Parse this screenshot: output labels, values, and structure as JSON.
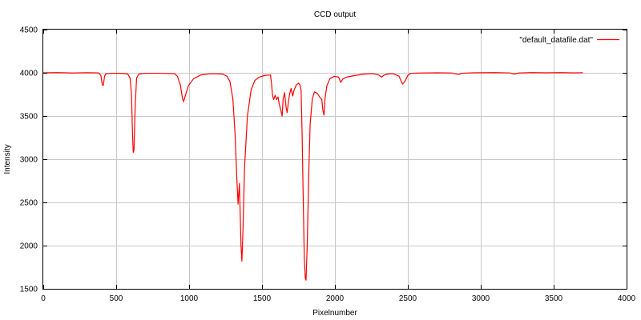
{
  "chart_data": {
    "type": "line",
    "title": "CCD output",
    "xlabel": "Pixelnumber",
    "ylabel": "Intensity",
    "xlim": [
      0,
      4000
    ],
    "ylim": [
      1500,
      4500
    ],
    "grid": true,
    "legend_position": "top-right",
    "x_ticks": [
      {
        "value": 0,
        "label": "0"
      },
      {
        "value": 500,
        "label": "500"
      },
      {
        "value": 1000,
        "label": "1000"
      },
      {
        "value": 1500,
        "label": "1500"
      },
      {
        "value": 2000,
        "label": "2000"
      },
      {
        "value": 2500,
        "label": "2500"
      },
      {
        "value": 3000,
        "label": "3000"
      },
      {
        "value": 3500,
        "label": "3500"
      },
      {
        "value": 4000,
        "label": "4000"
      }
    ],
    "y_ticks": [
      {
        "value": 1500,
        "label": "1500"
      },
      {
        "value": 2000,
        "label": "2000"
      },
      {
        "value": 2500,
        "label": "2500"
      },
      {
        "value": 3000,
        "label": "3000"
      },
      {
        "value": 3500,
        "label": "3500"
      },
      {
        "value": 4000,
        "label": "4000"
      },
      {
        "value": 4500,
        "label": "4500"
      }
    ],
    "series": [
      {
        "name": "\"default_datafile.dat\"",
        "color": "#ff0000",
        "points": [
          [
            0,
            4000
          ],
          [
            100,
            4002
          ],
          [
            200,
            3998
          ],
          [
            300,
            4001
          ],
          [
            380,
            3999
          ],
          [
            395,
            3970
          ],
          [
            405,
            3860
          ],
          [
            412,
            3855
          ],
          [
            420,
            3960
          ],
          [
            430,
            3990
          ],
          [
            480,
            3995
          ],
          [
            540,
            3994
          ],
          [
            580,
            3985
          ],
          [
            595,
            3940
          ],
          [
            605,
            3750
          ],
          [
            612,
            3300
          ],
          [
            617,
            3080
          ],
          [
            622,
            3100
          ],
          [
            630,
            3600
          ],
          [
            640,
            3940
          ],
          [
            655,
            3985
          ],
          [
            700,
            3995
          ],
          [
            800,
            3995
          ],
          [
            900,
            3990
          ],
          [
            920,
            3960
          ],
          [
            940,
            3860
          ],
          [
            955,
            3700
          ],
          [
            962,
            3665
          ],
          [
            975,
            3740
          ],
          [
            995,
            3850
          ],
          [
            1030,
            3930
          ],
          [
            1080,
            3975
          ],
          [
            1150,
            3990
          ],
          [
            1230,
            3985
          ],
          [
            1260,
            3960
          ],
          [
            1280,
            3900
          ],
          [
            1300,
            3700
          ],
          [
            1315,
            3300
          ],
          [
            1328,
            2750
          ],
          [
            1336,
            2480
          ],
          [
            1340,
            2600
          ],
          [
            1345,
            2720
          ],
          [
            1350,
            2400
          ],
          [
            1356,
            2000
          ],
          [
            1362,
            1820
          ],
          [
            1370,
            2200
          ],
          [
            1380,
            2900
          ],
          [
            1400,
            3500
          ],
          [
            1425,
            3800
          ],
          [
            1450,
            3910
          ],
          [
            1480,
            3950
          ],
          [
            1520,
            3970
          ],
          [
            1558,
            3975
          ],
          [
            1565,
            3880
          ],
          [
            1572,
            3740
          ],
          [
            1580,
            3690
          ],
          [
            1590,
            3740
          ],
          [
            1600,
            3690
          ],
          [
            1610,
            3720
          ],
          [
            1618,
            3640
          ],
          [
            1630,
            3560
          ],
          [
            1638,
            3500
          ],
          [
            1645,
            3700
          ],
          [
            1655,
            3770
          ],
          [
            1665,
            3600
          ],
          [
            1672,
            3540
          ],
          [
            1680,
            3650
          ],
          [
            1690,
            3760
          ],
          [
            1700,
            3820
          ],
          [
            1710,
            3730
          ],
          [
            1720,
            3800
          ],
          [
            1735,
            3860
          ],
          [
            1750,
            3880
          ],
          [
            1760,
            3860
          ],
          [
            1768,
            3800
          ],
          [
            1775,
            3300
          ],
          [
            1782,
            2600
          ],
          [
            1790,
            1850
          ],
          [
            1797,
            1620
          ],
          [
            1802,
            1600
          ],
          [
            1810,
            2000
          ],
          [
            1820,
            2800
          ],
          [
            1830,
            3400
          ],
          [
            1845,
            3700
          ],
          [
            1860,
            3780
          ],
          [
            1880,
            3760
          ],
          [
            1895,
            3720
          ],
          [
            1910,
            3690
          ],
          [
            1918,
            3560
          ],
          [
            1925,
            3510
          ],
          [
            1932,
            3700
          ],
          [
            1945,
            3850
          ],
          [
            1965,
            3930
          ],
          [
            1995,
            3960
          ],
          [
            2025,
            3950
          ],
          [
            2040,
            3890
          ],
          [
            2055,
            3930
          ],
          [
            2080,
            3950
          ],
          [
            2140,
            3970
          ],
          [
            2200,
            3985
          ],
          [
            2260,
            3990
          ],
          [
            2300,
            3975
          ],
          [
            2320,
            3950
          ],
          [
            2330,
            3965
          ],
          [
            2340,
            3975
          ],
          [
            2360,
            3985
          ],
          [
            2400,
            3990
          ],
          [
            2440,
            3960
          ],
          [
            2455,
            3900
          ],
          [
            2465,
            3870
          ],
          [
            2480,
            3900
          ],
          [
            2500,
            3970
          ],
          [
            2520,
            3995
          ],
          [
            2600,
            3998
          ],
          [
            2700,
            4000
          ],
          [
            2800,
            3998
          ],
          [
            2850,
            3980
          ],
          [
            2870,
            3995
          ],
          [
            2950,
            4000
          ],
          [
            3100,
            4002
          ],
          [
            3200,
            3998
          ],
          [
            3230,
            3985
          ],
          [
            3260,
            3998
          ],
          [
            3350,
            4002
          ],
          [
            3450,
            4000
          ],
          [
            3550,
            4002
          ],
          [
            3640,
            3999
          ],
          [
            3700,
            4001
          ]
        ]
      }
    ]
  }
}
